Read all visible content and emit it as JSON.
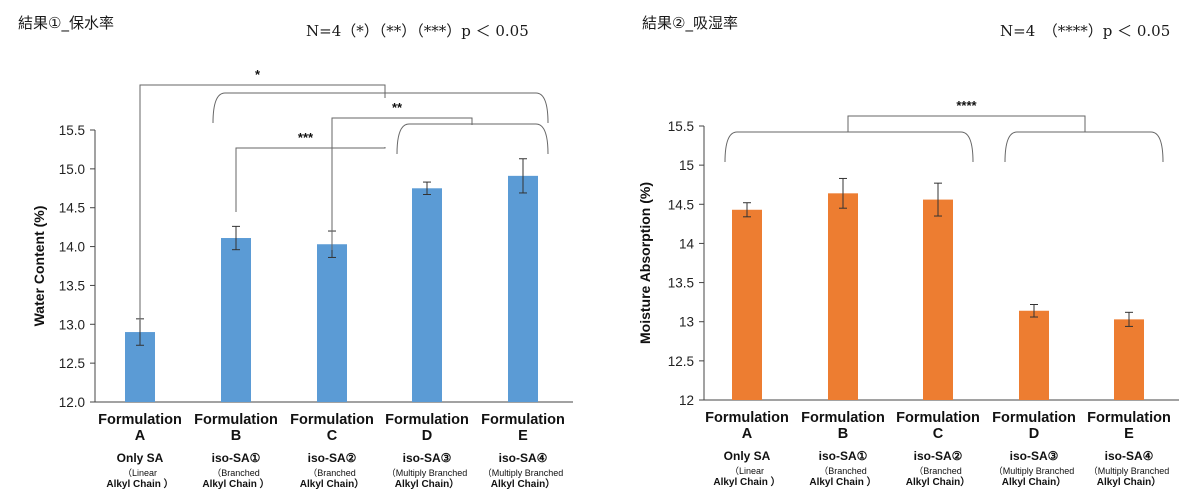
{
  "headers": {
    "left": {
      "title": "結果①_保水率",
      "pvalue": "N=4（*）（**）（***）p ＜ 0.05"
    },
    "right": {
      "title": "結果②_吸湿率",
      "pvalue": "N=4　（****）p ＜ 0.05"
    }
  },
  "chart_data": [
    {
      "type": "bar",
      "title": "結果①_保水率",
      "categories": [
        "Formulation A",
        "Formulation B",
        "Formulation C",
        "Formulation D",
        "Formulation E"
      ],
      "category_lines": [
        [
          "Formulation",
          "A",
          "Only SA",
          "（Linear",
          "Alkyl Chain ）"
        ],
        [
          "Formulation",
          "B",
          "iso-SA①",
          "（Branched",
          "Alkyl Chain ）"
        ],
        [
          "Formulation",
          "C",
          "iso-SA②",
          "（Branched",
          "Alkyl Chain）"
        ],
        [
          "Formulation",
          "D",
          "iso-SA③",
          "（Multiply Branched",
          "Alkyl Chain）"
        ],
        [
          "Formulation",
          "E",
          "iso-SA④",
          "（Multiply Branched",
          "Alkyl Chain）"
        ]
      ],
      "values": [
        12.9,
        14.11,
        14.03,
        14.75,
        14.91
      ],
      "errors": [
        0.17,
        0.15,
        0.17,
        0.08,
        0.22
      ],
      "color": "#5b9bd5",
      "ylabel": "Water Content (%)",
      "ylim": [
        12.0,
        15.5
      ],
      "yticks": [
        "12.0",
        "12.5",
        "13.0",
        "13.5",
        "14.0",
        "14.5",
        "15.0",
        "15.5"
      ],
      "annotations": [
        "*",
        "**",
        "***"
      ]
    },
    {
      "type": "bar",
      "title": "結果②_吸湿率",
      "categories": [
        "Formulation A",
        "Formulation B",
        "Formulation C",
        "Formulation D",
        "Formulation E"
      ],
      "category_lines": [
        [
          "Formulation",
          "A",
          "Only SA",
          "（Linear",
          "Alkyl Chain ）"
        ],
        [
          "Formulation",
          "B",
          "iso-SA①",
          "（Branched",
          "Alkyl Chain ）"
        ],
        [
          "Formulation",
          "C",
          "iso-SA②",
          "（Branched",
          "Alkyl Chain）"
        ],
        [
          "Formulation",
          "D",
          "iso-SA③",
          "（Multiply Branched",
          "Alkyl Chain）"
        ],
        [
          "Formulation",
          "E",
          "iso-SA④",
          "（Multiply Branched",
          "Alkyl Chain）"
        ]
      ],
      "values": [
        14.43,
        14.64,
        14.56,
        13.14,
        13.03
      ],
      "errors": [
        0.09,
        0.19,
        0.21,
        0.08,
        0.09
      ],
      "color": "#ed7d31",
      "ylabel": "Moisture Absorption (%)",
      "ylim": [
        12,
        15.5
      ],
      "yticks": [
        "12",
        "12.5",
        "13",
        "13.5",
        "14",
        "14.5",
        "15",
        "15.5"
      ],
      "annotations": [
        "****"
      ]
    }
  ]
}
